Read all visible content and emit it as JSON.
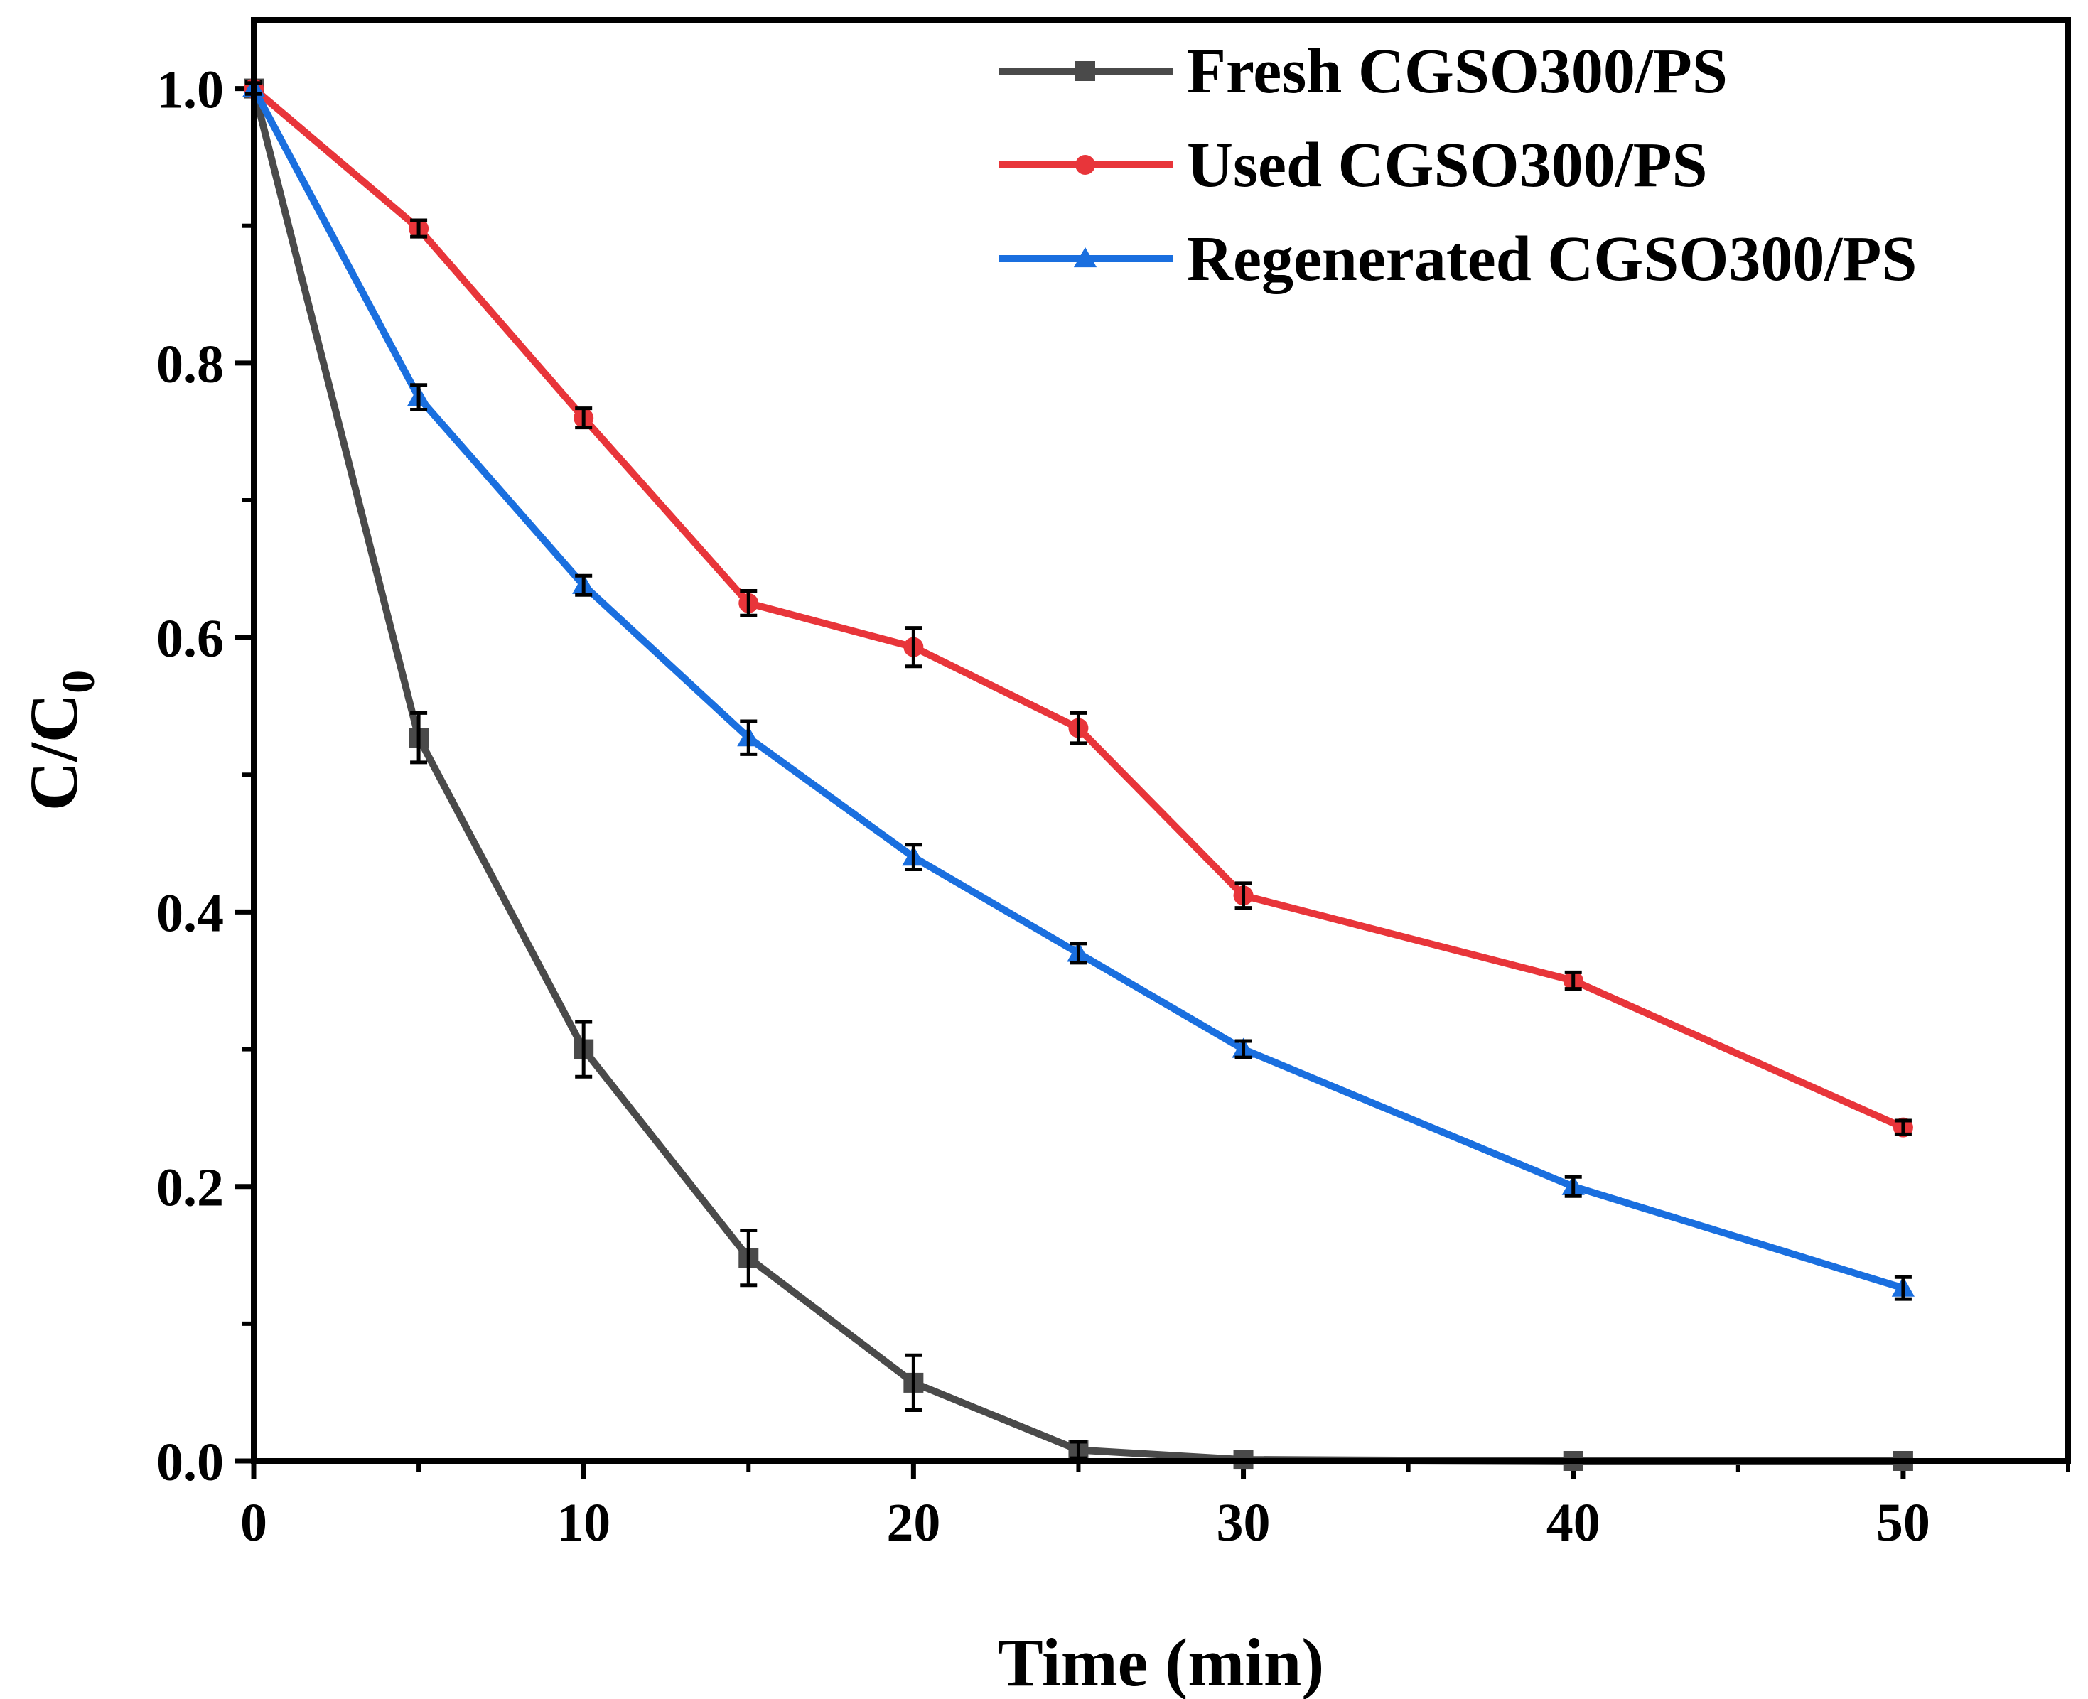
{
  "chart_data": {
    "type": "line",
    "title": "",
    "xlabel": "Time (min)",
    "ylabel": "C/C",
    "ylabel_subscript": "0",
    "xlim": [
      0,
      55
    ],
    "ylim": [
      0,
      1.05
    ],
    "xticks": [
      0,
      10,
      20,
      30,
      40,
      50
    ],
    "xtick_labels": [
      "0",
      "10",
      "20",
      "30",
      "40",
      "50"
    ],
    "yticks": [
      0.0,
      0.2,
      0.4,
      0.6,
      0.8,
      1.0
    ],
    "ytick_labels": [
      "0.0",
      "0.2",
      "0.4",
      "0.6",
      "0.8",
      "1.0"
    ],
    "grid": false,
    "legend_position": "top-right",
    "series": [
      {
        "name": "Fresh CGSO300/PS",
        "color": "#4a4a4a",
        "marker": "square",
        "x": [
          0,
          5,
          10,
          15,
          20,
          25,
          30,
          40,
          50
        ],
        "y": [
          1.0,
          0.527,
          0.3,
          0.148,
          0.057,
          0.008,
          0.001,
          0.0,
          0.0
        ],
        "err": [
          0.005,
          0.018,
          0.02,
          0.02,
          0.02,
          0.006,
          0.002,
          0.002,
          0.002
        ]
      },
      {
        "name": "Used CGSO300/PS",
        "color": "#e8353a",
        "marker": "circle",
        "x": [
          0,
          5,
          10,
          15,
          20,
          25,
          30,
          40,
          50
        ],
        "y": [
          1.0,
          0.898,
          0.76,
          0.625,
          0.593,
          0.534,
          0.412,
          0.35,
          0.243
        ],
        "err": [
          0.004,
          0.006,
          0.007,
          0.009,
          0.014,
          0.011,
          0.009,
          0.006,
          0.005
        ]
      },
      {
        "name": "Regenerated CGSO300/PS",
        "color": "#1a6fdf",
        "marker": "triangle",
        "x": [
          0,
          5,
          10,
          15,
          20,
          25,
          30,
          40,
          50
        ],
        "y": [
          1.0,
          0.775,
          0.638,
          0.527,
          0.44,
          0.37,
          0.3,
          0.2,
          0.126
        ],
        "err": [
          0.004,
          0.009,
          0.007,
          0.012,
          0.009,
          0.007,
          0.006,
          0.007,
          0.008
        ]
      }
    ]
  }
}
